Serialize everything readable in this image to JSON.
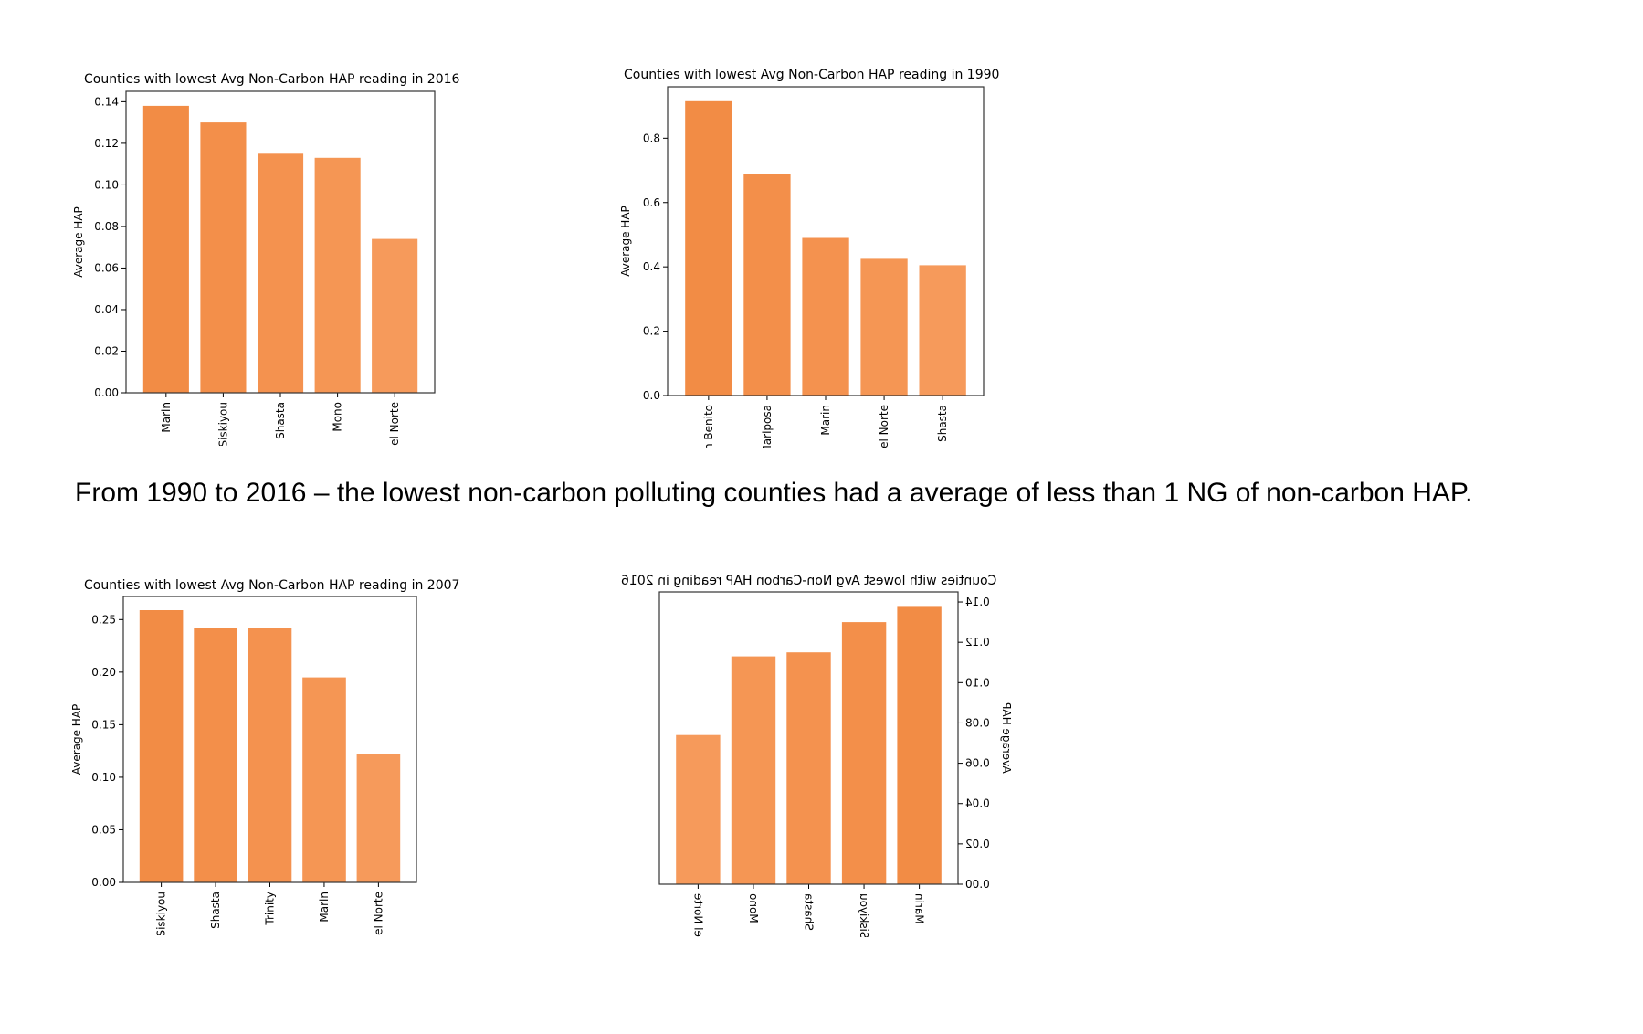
{
  "caption": "From 1990 to 2016 – the lowest non-carbon polluting counties had a average of less than 1 NG of non-carbon HAP.",
  "bar_colors": [
    "#f28c45",
    "#f38f4a",
    "#f4924f",
    "#f59654",
    "#f69a5b"
  ],
  "chart_data": [
    {
      "type": "bar",
      "title": "Counties with lowest Avg Non-Carbon HAP reading in 2016",
      "ylabel": "Average HAP",
      "categories": [
        "Marin",
        "Siskiyou",
        "Shasta",
        "Mono",
        "Del Norte"
      ],
      "values": [
        0.138,
        0.13,
        0.115,
        0.113,
        0.074
      ],
      "ylim": [
        0,
        0.145
      ],
      "yticks": [
        "0.00",
        "0.02",
        "0.04",
        "0.06",
        "0.08",
        "0.10",
        "0.12",
        "0.14"
      ],
      "mirrored": false
    },
    {
      "type": "bar",
      "title": "Counties with lowest Avg Non-Carbon HAP reading in 1990",
      "ylabel": "Average HAP",
      "categories": [
        "San Benito",
        "Mariposa",
        "Marin",
        "Del Norte",
        "Shasta"
      ],
      "values": [
        0.915,
        0.69,
        0.49,
        0.425,
        0.405
      ],
      "ylim": [
        0,
        0.96
      ],
      "yticks": [
        "0.0",
        "0.2",
        "0.4",
        "0.6",
        "0.8"
      ],
      "mirrored": false
    },
    {
      "type": "bar",
      "title": "Counties with lowest Avg Non-Carbon HAP reading in 2007",
      "ylabel": "Average HAP",
      "categories": [
        "Siskiyou",
        "Shasta",
        "Trinity",
        "Marin",
        "Del Norte"
      ],
      "values": [
        0.259,
        0.242,
        0.242,
        0.195,
        0.122
      ],
      "ylim": [
        0,
        0.272
      ],
      "yticks": [
        "0.00",
        "0.05",
        "0.10",
        "0.15",
        "0.20",
        "0.25"
      ],
      "mirrored": false
    },
    {
      "type": "bar",
      "title": "Counties with lowest Avg Non-Carbon HAP reading in 2016",
      "ylabel": "Average HAP",
      "categories": [
        "Marin",
        "Siskiyou",
        "Shasta",
        "Mono",
        "Del Norte"
      ],
      "values": [
        0.138,
        0.13,
        0.115,
        0.113,
        0.074
      ],
      "ylim": [
        0,
        0.145
      ],
      "yticks": [
        "0.00",
        "0.02",
        "0.04",
        "0.06",
        "0.08",
        "0.10",
        "0.12",
        "0.14"
      ],
      "mirrored": true
    }
  ]
}
